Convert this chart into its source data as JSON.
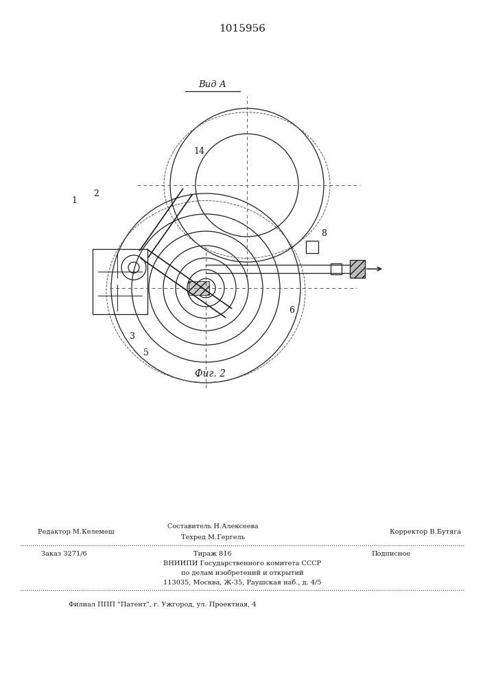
{
  "patent_number": "1015956",
  "title_view": "Вид А",
  "fig_caption": "Фиг. 2",
  "bg_color": "#ffffff",
  "line_color": "#1a1a1a",
  "dashed_color": "#555555",
  "footer_line1_left": "Редактор М.Келемеш",
  "footer_line1_center_top": "Составитель Н.Алексеева",
  "footer_line1_center_bot": "Техред М.Гергель",
  "footer_line1_right": "Корректор В.Бутяга",
  "footer_line2_left": "Заказ 3271/6",
  "footer_line2_center": "Тираж 816",
  "footer_line2_right": "Подписное",
  "footer_line3": "ВНИИПИ Государственного комитета СССР",
  "footer_line4": "по делам изобретений и открытий",
  "footer_line5": "113035, Москва, Ж-35, Раушская наб., д. 4/5",
  "footer_line6": "Филиал ППП \"Патент\", г. Ужгород, ул. Проектная, 4"
}
